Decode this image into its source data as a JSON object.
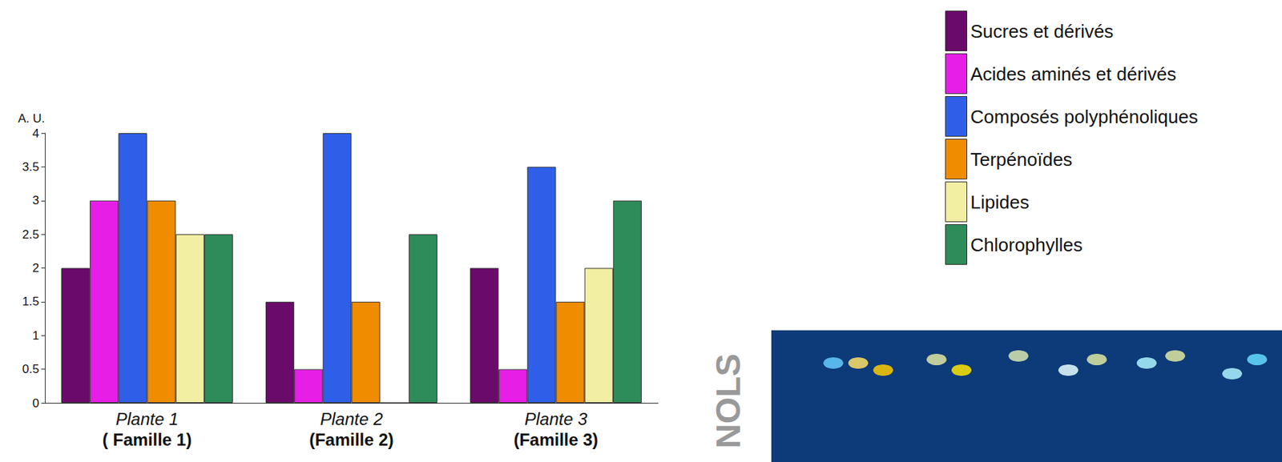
{
  "chart_data": {
    "type": "bar",
    "y_label": "A. U.",
    "categories": [
      "Plante 1\n( Famille 1)",
      "Plante 2\n(Famille 2)",
      "Plante 3\n(Famille 3)"
    ],
    "series": [
      {
        "name": "Sucres et dérivés",
        "color": "#6a0a6a",
        "values": [
          2,
          1.5,
          2
        ]
      },
      {
        "name": "Acides aminés et dérivés",
        "color": "#e61ee6",
        "values": [
          3,
          0.5,
          0.5
        ]
      },
      {
        "name": "Composés polyphénoliques",
        "color": "#2f5fe8",
        "values": [
          4,
          4,
          3.5
        ]
      },
      {
        "name": "Terpénoïdes",
        "color": "#f08c00",
        "values": [
          3,
          1.5,
          1.5
        ]
      },
      {
        "name": "Lipides",
        "color": "#f3efa2",
        "values": [
          2.5,
          0,
          2
        ]
      },
      {
        "name": "Chlorophylles",
        "color": "#2e8b5a",
        "values": [
          2.5,
          2.5,
          3
        ]
      }
    ],
    "ylim": [
      0,
      4
    ],
    "yticks": [
      0,
      0.5,
      1,
      1.5,
      2,
      2.5,
      3,
      3.5,
      4
    ],
    "grid": false,
    "legend": "upper right",
    "annotations": [
      "NOLS"
    ]
  }
}
